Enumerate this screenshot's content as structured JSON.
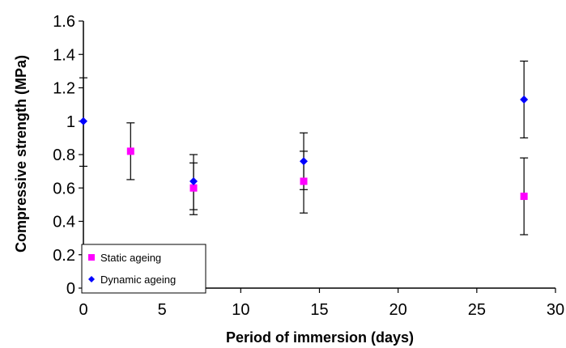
{
  "chart_data": {
    "type": "scatter",
    "title": "",
    "xlabel": "Period of immersion (days)",
    "ylabel": "Compressive strength (MPa)",
    "xlim": [
      0,
      30
    ],
    "ylim": [
      0,
      1.6
    ],
    "x_ticks": [
      0,
      5,
      10,
      15,
      20,
      25,
      30
    ],
    "y_ticks": [
      0,
      0.2,
      0.4,
      0.6,
      0.8,
      1,
      1.2,
      1.4,
      1.6
    ],
    "x_tick_labels": [
      "0",
      "5",
      "10",
      "15",
      "20",
      "25",
      "30"
    ],
    "y_tick_labels": [
      "0",
      "0.2",
      "0.4",
      "0.6",
      "0.8",
      "1",
      "1.2",
      "1.4",
      "1.6"
    ],
    "grid": false,
    "legend_position": "bottom-left",
    "series": [
      {
        "name": "Static ageing",
        "marker": "square",
        "color": "#ff00ff",
        "points": [
          {
            "x": 3,
            "y": 0.82,
            "err_low": 0.65,
            "err_high": 0.99
          },
          {
            "x": 7,
            "y": 0.6,
            "err_low": 0.44,
            "err_high": 0.75
          },
          {
            "x": 14,
            "y": 0.64,
            "err_low": 0.45,
            "err_high": 0.82
          },
          {
            "x": 28,
            "y": 0.55,
            "err_low": 0.32,
            "err_high": 0.78
          }
        ]
      },
      {
        "name": "Dynamic ageing",
        "marker": "diamond",
        "color": "#0000ff",
        "points": [
          {
            "x": 0,
            "y": 1.0,
            "err_low": 0.73,
            "err_high": 1.26
          },
          {
            "x": 7,
            "y": 0.64,
            "err_low": 0.47,
            "err_high": 0.8
          },
          {
            "x": 14,
            "y": 0.76,
            "err_low": 0.59,
            "err_high": 0.93
          },
          {
            "x": 28,
            "y": 1.13,
            "err_low": 0.9,
            "err_high": 1.36
          }
        ]
      }
    ]
  }
}
